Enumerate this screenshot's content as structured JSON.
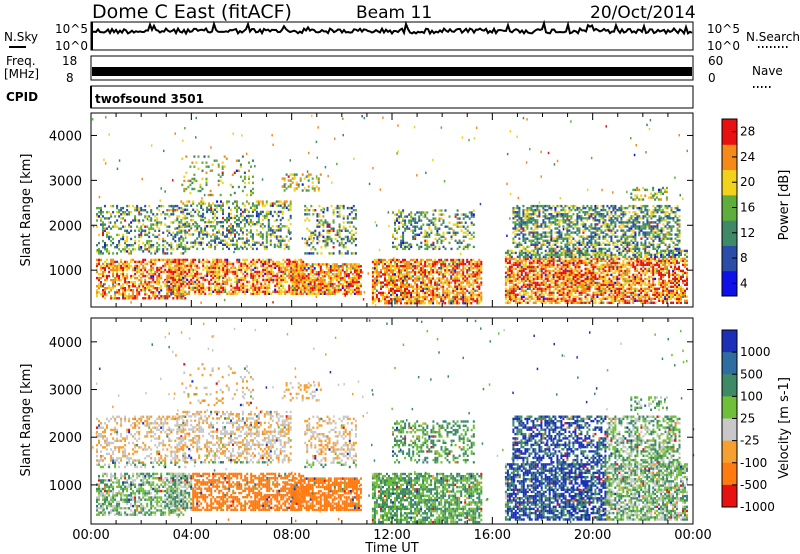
{
  "chart_data": [
    {
      "type": "header",
      "station": "Dome C East (fitACF)",
      "beam": "Beam 11",
      "date": "20/Oct/2014"
    },
    {
      "type": "line",
      "panel": "noise",
      "left_label": "N.Sky",
      "right_label": "N.Search",
      "ylim_ticks": [
        "10^5",
        "10^0"
      ],
      "x_range_hours": [
        0,
        24
      ],
      "sky_level": 0.72,
      "search_level": 0.72
    },
    {
      "type": "line",
      "panel": "freq-nave",
      "left_label": "Freq.",
      "left_unit": "[MHz]",
      "left_ticks": [
        "18",
        "8"
      ],
      "right_label": "Nave",
      "right_ticks": [
        "60",
        "0"
      ],
      "freq_mhz": 10.5,
      "nave": 18
    },
    {
      "type": "text",
      "panel": "cpid",
      "label": "CPID",
      "program": "twofsound 3501"
    },
    {
      "type": "heatmap",
      "panel": "power",
      "ylabel": "Slant Range [km]",
      "y_ticks": [
        1000,
        2000,
        3000,
        4000
      ],
      "ylim_km": [
        180,
        4500
      ],
      "x_range_hours": [
        0,
        24
      ],
      "colorbar": {
        "label": "Power [dB]",
        "ticks": [
          "4",
          "8",
          "12",
          "16",
          "20",
          "24",
          "28"
        ],
        "colors": [
          "#1010e8",
          "#2a4ea8",
          "#3e8a66",
          "#5fae3c",
          "#f2d21a",
          "#f58a1a",
          "#e81010"
        ]
      }
    },
    {
      "type": "heatmap",
      "panel": "velocity",
      "ylabel": "Slant Range [km]",
      "y_ticks": [
        1000,
        2000,
        3000,
        4000
      ],
      "ylim_km": [
        180,
        4500
      ],
      "x_range_hours": [
        0,
        24
      ],
      "colorbar": {
        "label": "Velocity [m s-1]",
        "ticks": [
          "1000",
          "500",
          "100",
          "25",
          "-25",
          "-100",
          "-500",
          "-1000"
        ],
        "colors": [
          "#1b2fb8",
          "#2d6da0",
          "#3e8a66",
          "#6fbf3a",
          "#c8c8c8",
          "#f5a030",
          "#ff7a10",
          "#e81010"
        ]
      }
    },
    {
      "type": "axis",
      "xlabel": "Time UT",
      "x_ticks": [
        "00:00",
        "04:00",
        "08:00",
        "12:00",
        "16:00",
        "20:00",
        "00:00"
      ]
    }
  ]
}
